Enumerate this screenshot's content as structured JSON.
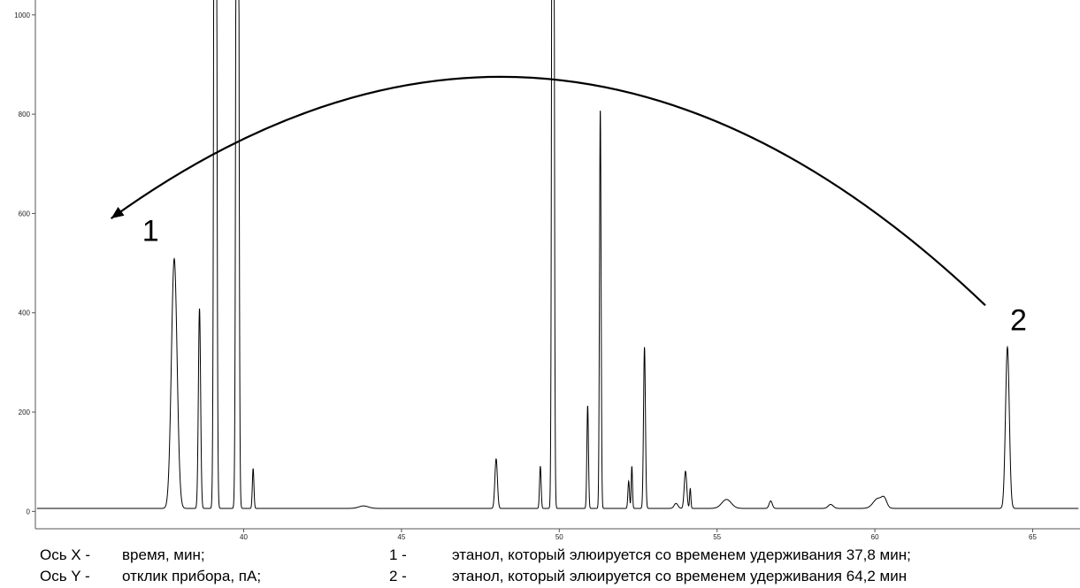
{
  "chart_data": {
    "type": "line",
    "title": "",
    "xlabel": "",
    "ylabel": "",
    "xlim": [
      33.4,
      66.5
    ],
    "ylim": [
      -35,
      1030
    ],
    "xticks": [
      40,
      45,
      50,
      55,
      60,
      65
    ],
    "yticks": [
      0,
      200,
      400,
      600,
      800,
      1000
    ],
    "xtick_labels": [
      "40",
      "45",
      "50",
      "55",
      "60",
      "65"
    ],
    "ytick_labels": [
      "0",
      "200",
      "400",
      "600",
      "800",
      "1000"
    ],
    "baseline": 6,
    "peaks": [
      {
        "x": 37.8,
        "height": 503,
        "width": 0.09
      },
      {
        "x": 38.6,
        "height": 403,
        "width": 0.035
      },
      {
        "x": 39.1,
        "height": 3000,
        "width": 0.035
      },
      {
        "x": 39.8,
        "height": 3000,
        "width": 0.035
      },
      {
        "x": 40.3,
        "height": 80,
        "width": 0.025
      },
      {
        "x": 43.8,
        "height": 5,
        "width": 0.15
      },
      {
        "x": 48.0,
        "height": 100,
        "width": 0.04
      },
      {
        "x": 49.4,
        "height": 85,
        "width": 0.025
      },
      {
        "x": 49.8,
        "height": 3000,
        "width": 0.03
      },
      {
        "x": 50.9,
        "height": 207,
        "width": 0.025
      },
      {
        "x": 51.3,
        "height": 805,
        "width": 0.025
      },
      {
        "x": 52.2,
        "height": 55,
        "width": 0.025
      },
      {
        "x": 52.3,
        "height": 85,
        "width": 0.02
      },
      {
        "x": 52.7,
        "height": 325,
        "width": 0.03
      },
      {
        "x": 53.7,
        "height": 10,
        "width": 0.06
      },
      {
        "x": 54.0,
        "height": 75,
        "width": 0.04
      },
      {
        "x": 54.15,
        "height": 40,
        "width": 0.02
      },
      {
        "x": 55.3,
        "height": 18,
        "width": 0.15
      },
      {
        "x": 56.7,
        "height": 15,
        "width": 0.05
      },
      {
        "x": 58.6,
        "height": 8,
        "width": 0.08
      },
      {
        "x": 60.1,
        "height": 20,
        "width": 0.15
      },
      {
        "x": 60.3,
        "height": 15,
        "width": 0.08
      },
      {
        "x": 64.2,
        "height": 325,
        "width": 0.06
      }
    ],
    "annotations": [
      {
        "text": "1",
        "x": 37.05,
        "y": 545
      },
      {
        "text": "2",
        "x": 64.55,
        "y": 365
      }
    ],
    "arrow": {
      "from": [
        63.5,
        415
      ],
      "to": [
        35.8,
        590
      ],
      "via": [
        49.8,
        870
      ]
    }
  },
  "legend": {
    "row1": {
      "axis": "Ось X -",
      "meaning": "время, мин;",
      "num": "1 -",
      "desc": "этанол, который элюируется со временем удерживания 37,8 мин;"
    },
    "row2": {
      "axis": "Ось Y -",
      "meaning": "отклик прибора, пА;",
      "num": "2 -",
      "desc": "этанол, который элюируется со временем удерживания 64,2 мин"
    }
  }
}
